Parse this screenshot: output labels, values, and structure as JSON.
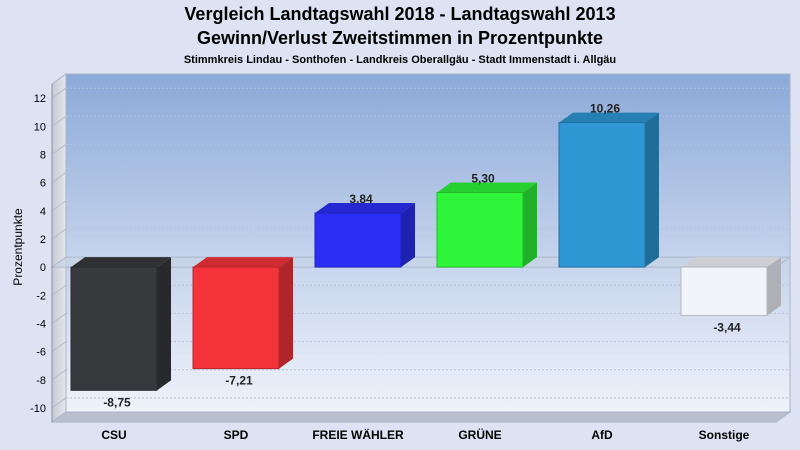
{
  "chart_data": {
    "type": "bar",
    "title": "Vergleich Landtagswahl 2018 - Landtagswahl 2013",
    "subtitle": "Gewinn/Verlust Zweitstimmen in Prozentpunkte",
    "subsubtitle": "Stimmkreis Lindau - Sonthofen - Landkreis Oberallgäu - Stadt Immenstadt i. Allgäu",
    "xlabel": "",
    "ylabel": "Prozentpunkte",
    "ylim": [
      -11,
      13
    ],
    "yticks": [
      12,
      10,
      8,
      6,
      4,
      2,
      0,
      -2,
      -4,
      -6,
      -8,
      -10
    ],
    "categories": [
      "CSU",
      "SPD",
      "FREIE WÄHLER",
      "GRÜNE",
      "AfD",
      "Sonstige"
    ],
    "values": [
      -8.75,
      -7.21,
      3.84,
      5.3,
      10.26,
      -3.44
    ],
    "value_labels": [
      "-8,75",
      "-7,21",
      "3,84",
      "5,30",
      "10,26",
      "-3,44"
    ],
    "colors": [
      "#38393d",
      "#f5333a",
      "#2b2ef5",
      "#2ef53a",
      "#2e97d4",
      "#f1f4fb"
    ],
    "grid": true,
    "legend": "none"
  }
}
